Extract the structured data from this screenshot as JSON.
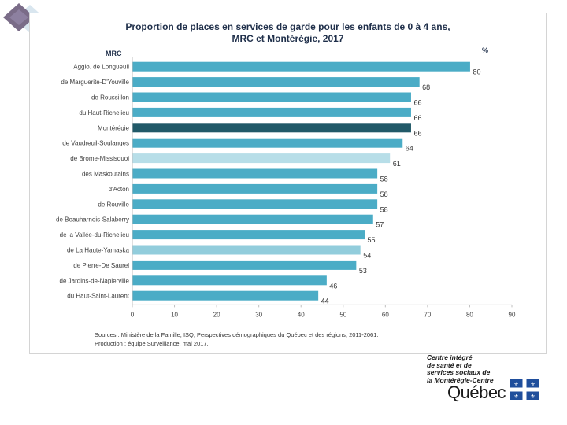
{
  "chart_data": {
    "type": "bar",
    "orientation": "horizontal",
    "title": "Proportion de places en services de garde pour les enfants de 0 à 4 ans,",
    "subtitle": "MRC et Montérégie, 2017",
    "category_axis_label": "MRC",
    "unit_label": "%",
    "categories": [
      "Agglo. de Longueuil",
      "de Marguerite-D'Youville",
      "de Roussillon",
      "du Haut-Richelieu",
      "Montérégie",
      "de Vaudreuil-Soulanges",
      "de Brome-Missisquoi",
      "des Maskoutains",
      "d'Acton",
      "de Rouville",
      "de Beauharnois-Salaberry",
      "de la Vallée-du-Richelieu",
      "de La Haute-Yamaska",
      "de Pierre-De Saurel",
      "de Jardins-de-Napierville",
      "du Haut-Saint-Laurent"
    ],
    "values": [
      80,
      68,
      66,
      66,
      66,
      64,
      61,
      58,
      58,
      58,
      57,
      55,
      54,
      53,
      46,
      44
    ],
    "bar_colors": [
      "#4bacc6",
      "#4bacc6",
      "#4bacc6",
      "#4bacc6",
      "#215968",
      "#4bacc6",
      "#b7dee8",
      "#4bacc6",
      "#4bacc6",
      "#4bacc6",
      "#4bacc6",
      "#4bacc6",
      "#92cddc",
      "#4bacc6",
      "#4bacc6",
      "#4bacc6"
    ],
    "xlim": [
      0,
      90
    ],
    "xticks": [
      0,
      10,
      20,
      30,
      40,
      50,
      60,
      70,
      80,
      90
    ],
    "grid": false
  },
  "source": {
    "line1": "Sources : Ministère de la Famille; ISQ, Perspectives démographiques du Québec et des régions, 2011-2061.",
    "line2": "Production : équipe Surveillance, mai 2017."
  },
  "logo": {
    "lines": [
      "Centre intégré",
      "de santé et de",
      "services sociaux de",
      "la Montérégie-Centre"
    ],
    "wordmark": "Québec"
  },
  "colors": {
    "title": "#1f2f4a",
    "label": "#404040",
    "axis": "#bfbfbf"
  }
}
